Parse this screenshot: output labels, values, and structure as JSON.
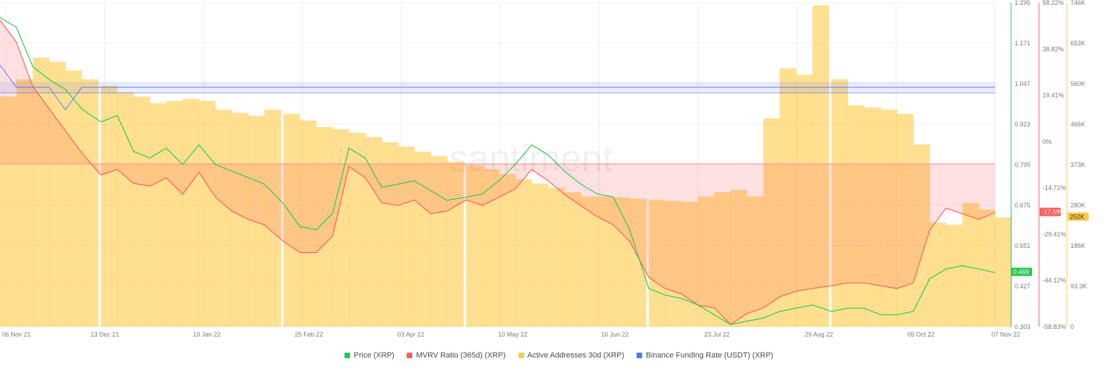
{
  "watermark": "santiment",
  "legend": [
    {
      "key": "price",
      "label": "Price (XRP)",
      "color": "#26c953"
    },
    {
      "key": "mvrv",
      "label": "MVRV Ratio (365d) (XRP)",
      "color": "#ff5b5b"
    },
    {
      "key": "addresses",
      "label": "Active Addresses 30d (XRP)",
      "color": "#ffcb47"
    },
    {
      "key": "funding",
      "label": "Binance Funding Rate (USDT) (XRP)",
      "color": "#5275ff"
    }
  ],
  "chart_data": {
    "type": "line",
    "grid": true,
    "x_ticks": [
      "06 Nov 21",
      "13 Dec 21",
      "19 Jan 22",
      "25 Feb 22",
      "03 Apr 22",
      "10 May 22",
      "16 Jun 22",
      "23 Jul 22",
      "29 Aug 22",
      "05 Oct 22",
      "07 Nov 22"
    ],
    "axes": {
      "price": {
        "label": "Price (XRP)",
        "range": [
          0.303,
          1.295
        ],
        "ticks": [
          "1.295",
          "1.171",
          "1.047",
          "0.923",
          "0.799",
          "0.675",
          "0.551",
          "0.427",
          "0.303"
        ],
        "current": "0.469",
        "color": "#26c953"
      },
      "mvrv": {
        "label": "MVRV Ratio (365d) (XRP)",
        "range": [
          -58.83,
          58.22
        ],
        "ticks": [
          "58.22%",
          "38.82%",
          "19.41%",
          "0%",
          "-14.71%",
          "-29.41%",
          "-44.12%",
          "-58.83%"
        ],
        "current": "-17.59%",
        "color": "#ff5b5b"
      },
      "addresses": {
        "label": "Active Addresses 30d (XRP)",
        "range": [
          0,
          746000
        ],
        "ticks": [
          "746K",
          "653K",
          "560K",
          "466K",
          "373K",
          "280K",
          "186K",
          "93.3K",
          "0"
        ],
        "current": "252K",
        "color": "#ffcb47"
      }
    },
    "series": [
      {
        "name": "Price (XRP)",
        "axis": "price",
        "color": "#26c953",
        "x": [
          0,
          6,
          12,
          18,
          24,
          30,
          37,
          43,
          49,
          55,
          61,
          67,
          73,
          79,
          85,
          91,
          97,
          104,
          110,
          116,
          122,
          128,
          134,
          140,
          146,
          152,
          158,
          164,
          171,
          177,
          183,
          189,
          195,
          201,
          207,
          213,
          219,
          225,
          231,
          238,
          244,
          250,
          256,
          262,
          268,
          274,
          280,
          286,
          292,
          298,
          305,
          311,
          317,
          323,
          329,
          335,
          341,
          347,
          353,
          359,
          365
        ],
        "values": [
          1.25,
          1.22,
          1.1,
          1.06,
          1.03,
          0.97,
          0.93,
          0.95,
          0.84,
          0.82,
          0.85,
          0.8,
          0.86,
          0.8,
          0.78,
          0.76,
          0.74,
          0.68,
          0.61,
          0.6,
          0.65,
          0.85,
          0.82,
          0.73,
          0.74,
          0.75,
          0.72,
          0.69,
          0.7,
          0.71,
          0.75,
          0.8,
          0.86,
          0.83,
          0.78,
          0.74,
          0.71,
          0.7,
          0.6,
          0.42,
          0.4,
          0.39,
          0.37,
          0.34,
          0.31,
          0.32,
          0.33,
          0.35,
          0.36,
          0.37,
          0.35,
          0.36,
          0.36,
          0.34,
          0.34,
          0.35,
          0.45,
          0.48,
          0.49,
          0.48,
          0.469
        ]
      },
      {
        "name": "MVRV Ratio (365d) (XRP)",
        "axis": "mvrv",
        "color": "#ff5b5b",
        "x": [
          0,
          6,
          12,
          18,
          24,
          30,
          37,
          43,
          49,
          55,
          61,
          67,
          73,
          79,
          85,
          91,
          97,
          104,
          110,
          116,
          122,
          128,
          134,
          140,
          146,
          152,
          158,
          164,
          171,
          177,
          183,
          189,
          195,
          201,
          207,
          213,
          219,
          225,
          231,
          238,
          244,
          250,
          256,
          262,
          268,
          274,
          280,
          286,
          292,
          298,
          305,
          311,
          317,
          323,
          329,
          335,
          341,
          347,
          353,
          359,
          365
        ],
        "values": [
          52,
          44,
          28,
          20,
          12,
          4,
          -4,
          -2,
          -7,
          -8,
          -5,
          -11,
          -3,
          -12,
          -17,
          -20,
          -22,
          -28,
          -32,
          -32,
          -26,
          -1,
          -5,
          -14,
          -15,
          -13,
          -18,
          -17,
          -13,
          -15,
          -12,
          -9,
          -2,
          -6,
          -11,
          -15,
          -19,
          -22,
          -28,
          -41,
          -45,
          -47,
          -51,
          -52,
          -58,
          -54,
          -52,
          -48,
          -46,
          -45,
          -44,
          -43,
          -43,
          -44,
          -45,
          -43,
          -24,
          -16,
          -18,
          -20,
          -17.59
        ]
      },
      {
        "name": "Active Addresses 30d (XRP)",
        "axis": "addresses",
        "color": "#ffcb47",
        "x": [
          0,
          6,
          12,
          18,
          24,
          30,
          37,
          43,
          49,
          55,
          61,
          67,
          73,
          79,
          85,
          91,
          97,
          104,
          110,
          116,
          122,
          128,
          134,
          140,
          146,
          152,
          158,
          164,
          171,
          177,
          183,
          189,
          195,
          201,
          207,
          213,
          219,
          225,
          231,
          238,
          244,
          250,
          256,
          262,
          268,
          274,
          280,
          286,
          292,
          298,
          305,
          311,
          317,
          323,
          329,
          335,
          341,
          347,
          353,
          359,
          365
        ],
        "values": [
          530000,
          570000,
          620000,
          610000,
          590000,
          570000,
          555000,
          540000,
          530000,
          515000,
          520000,
          525000,
          520000,
          500000,
          493000,
          486000,
          500000,
          490000,
          475000,
          460000,
          455000,
          447000,
          437000,
          425000,
          415000,
          403000,
          393000,
          380000,
          372000,
          363000,
          352000,
          340000,
          330000,
          320000,
          310000,
          300000,
          300000,
          298000,
          295000,
          292000,
          290000,
          288000,
          300000,
          310000,
          315000,
          300000,
          480000,
          595000,
          580000,
          740000,
          570000,
          510000,
          505000,
          500000,
          490000,
          420000,
          240000,
          235000,
          285000,
          270000,
          252000
        ]
      },
      {
        "name": "Binance Funding Rate (USDT) (XRP)",
        "axis": "funding",
        "color": "#5275ff",
        "x": [
          0,
          6,
          12,
          18,
          24,
          30,
          37,
          43,
          49,
          55,
          61,
          67,
          73,
          79,
          85,
          91,
          97,
          104,
          110,
          116,
          122,
          128,
          134,
          140,
          146,
          152,
          158,
          164,
          171,
          177,
          183,
          189,
          195,
          201,
          207,
          213,
          219,
          225,
          231,
          238,
          244,
          250,
          256,
          262,
          268,
          274,
          280,
          286,
          292,
          298,
          305,
          311,
          317,
          323,
          329,
          335,
          341,
          347,
          353,
          359,
          365
        ],
        "values": [
          0.05,
          0.01,
          0.01,
          0.01,
          -0.03,
          0.01,
          0.01,
          0.01,
          0.01,
          0.01,
          0.01,
          0.01,
          0.01,
          0.01,
          0.01,
          0.01,
          0.01,
          0.01,
          0.01,
          0.01,
          0.01,
          0.01,
          0.01,
          0.01,
          0.01,
          0.01,
          0.01,
          0.01,
          0.01,
          0.01,
          0.01,
          0.01,
          0.01,
          0.01,
          0.01,
          0.01,
          0.01,
          0.01,
          0.01,
          0.01,
          0.01,
          0.01,
          0.01,
          0.01,
          0.01,
          0.01,
          0.01,
          0.01,
          0.01,
          0.01,
          0.01,
          0.01,
          0.01,
          0.01,
          0.01,
          0.01,
          0.01,
          0.01,
          0.01,
          0.01,
          0.01
        ]
      }
    ]
  }
}
